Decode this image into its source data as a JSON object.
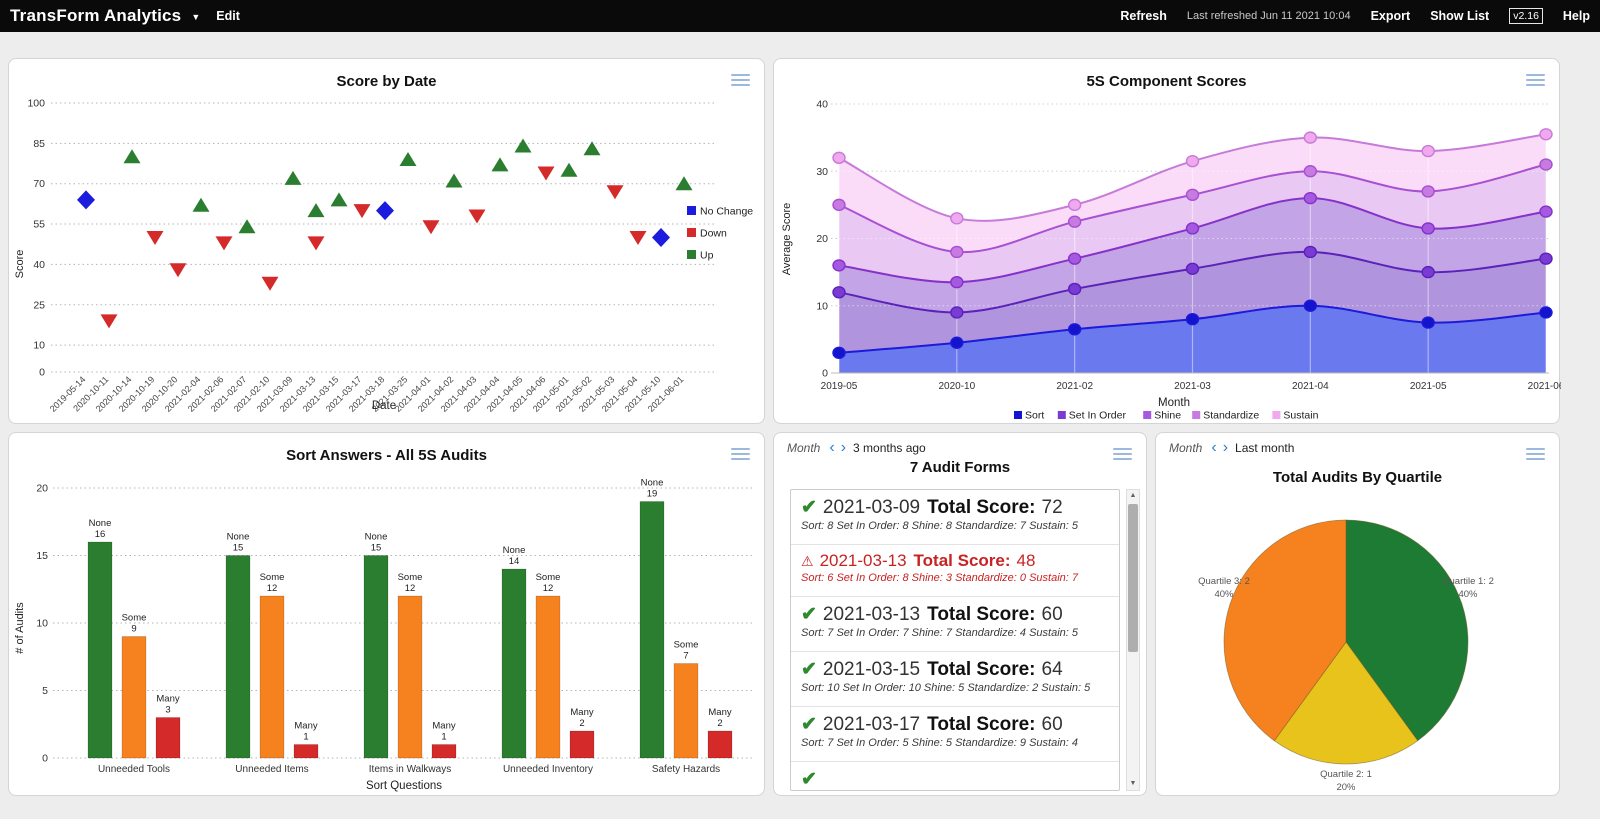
{
  "topbar": {
    "title": "TransForm Analytics",
    "edit_label": "Edit",
    "refresh_label": "Refresh",
    "last_refreshed": "Last refreshed Jun 11 2021 10:04",
    "export_label": "Export",
    "show_list_label": "Show List",
    "version": "v2.16",
    "help_label": "Help"
  },
  "audit_panel": {
    "nav_label": "Month",
    "nav_period": "3 months ago",
    "title": "7 Audit Forms",
    "total_label": "Total Score:",
    "items": [
      {
        "icon": "check",
        "date": "2021-03-09",
        "score": "72",
        "detail": "Sort: 8 Set In Order: 8 Shine: 8 Standardize: 7 Sustain: 5"
      },
      {
        "icon": "warning",
        "date": "2021-03-13",
        "score": "48",
        "detail": "Sort: 6 Set In Order: 8 Shine: 3 Standardize: 0 Sustain: 7"
      },
      {
        "icon": "check",
        "date": "2021-03-13",
        "score": "60",
        "detail": "Sort: 7 Set In Order: 7 Shine: 7 Standardize: 4 Sustain: 5"
      },
      {
        "icon": "check",
        "date": "2021-03-15",
        "score": "64",
        "detail": "Sort: 10 Set In Order: 10 Shine: 5 Standardize: 2 Sustain: 5"
      },
      {
        "icon": "check",
        "date": "2021-03-17",
        "score": "60",
        "detail": "Sort: 7 Set In Order: 5 Shine: 5 Standardize: 9 Sustain: 4"
      },
      {
        "icon": "check",
        "date": "",
        "score": "",
        "detail": ""
      }
    ]
  },
  "pie_panel": {
    "nav_label": "Month",
    "nav_period": "Last month"
  },
  "chart_data": [
    {
      "id": "score_by_date",
      "type": "scatter",
      "title": "Score by Date",
      "xlabel": "Date",
      "ylabel": "Score",
      "ylim": [
        0,
        100
      ],
      "yticks": [
        0,
        10,
        25,
        40,
        55,
        70,
        85,
        100
      ],
      "grid": "dotted horizontal",
      "legend_position": "right",
      "legend": [
        {
          "key": "no_change",
          "label": "No Change",
          "color": "#1c1cdf",
          "marker": "diamond"
        },
        {
          "key": "down",
          "label": "Down",
          "color": "#d42a2a",
          "marker": "triangle-down"
        },
        {
          "key": "up",
          "label": "Up",
          "color": "#2b7e2f",
          "marker": "triangle-up"
        }
      ],
      "categories": [
        "2019-05-14",
        "2020-10-11",
        "2020-10-14",
        "2020-10-19",
        "2020-10-20",
        "2021-02-04",
        "2021-02-06",
        "2021-02-07",
        "2021-02-10",
        "2021-03-09",
        "2021-03-13",
        "2021-03-15",
        "2021-03-17",
        "2021-03-18",
        "2021-03-25",
        "2021-04-01",
        "2021-04-02",
        "2021-04-03",
        "2021-04-04",
        "2021-04-05",
        "2021-04-06",
        "2021-05-01",
        "2021-05-02",
        "2021-05-03",
        "2021-05-04",
        "2021-05-10",
        "2021-06-01"
      ],
      "points": [
        {
          "date": "2019-05-14",
          "score": 64,
          "change": "no_change"
        },
        {
          "date": "2020-10-11",
          "score": 19,
          "change": "down"
        },
        {
          "date": "2020-10-14",
          "score": 80,
          "change": "up"
        },
        {
          "date": "2020-10-19",
          "score": 50,
          "change": "down"
        },
        {
          "date": "2020-10-20",
          "score": 38,
          "change": "down"
        },
        {
          "date": "2021-02-04",
          "score": 62,
          "change": "up"
        },
        {
          "date": "2021-02-06",
          "score": 48,
          "change": "down"
        },
        {
          "date": "2021-02-07",
          "score": 54,
          "change": "up"
        },
        {
          "date": "2021-02-10",
          "score": 33,
          "change": "down"
        },
        {
          "date": "2021-03-09",
          "score": 72,
          "change": "up"
        },
        {
          "date": "2021-03-13",
          "score": 48,
          "change": "down"
        },
        {
          "date": "2021-03-13",
          "score": 60,
          "change": "up"
        },
        {
          "date": "2021-03-15",
          "score": 64,
          "change": "up"
        },
        {
          "date": "2021-03-17",
          "score": 60,
          "change": "down"
        },
        {
          "date": "2021-03-18",
          "score": 60,
          "change": "no_change"
        },
        {
          "date": "2021-03-25",
          "score": 79,
          "change": "up"
        },
        {
          "date": "2021-04-01",
          "score": 54,
          "change": "down"
        },
        {
          "date": "2021-04-02",
          "score": 71,
          "change": "up"
        },
        {
          "date": "2021-04-03",
          "score": 58,
          "change": "down"
        },
        {
          "date": "2021-04-04",
          "score": 77,
          "change": "up"
        },
        {
          "date": "2021-04-05",
          "score": 84,
          "change": "up"
        },
        {
          "date": "2021-04-06",
          "score": 74,
          "change": "down"
        },
        {
          "date": "2021-05-01",
          "score": 75,
          "change": "up"
        },
        {
          "date": "2021-05-02",
          "score": 83,
          "change": "up"
        },
        {
          "date": "2021-05-03",
          "score": 67,
          "change": "down"
        },
        {
          "date": "2021-05-04",
          "score": 50,
          "change": "down"
        },
        {
          "date": "2021-05-10",
          "score": 50,
          "change": "no_change"
        },
        {
          "date": "2021-06-01",
          "score": 70,
          "change": "up"
        }
      ]
    },
    {
      "id": "component_scores",
      "type": "area",
      "title": "5S Component Scores",
      "xlabel": "Month",
      "ylabel": "Average Score",
      "ylim": [
        0,
        40
      ],
      "yticks": [
        0,
        10,
        20,
        30,
        40
      ],
      "stacked": true,
      "note": "values are cumulative stack heights as plotted",
      "legend_position": "bottom",
      "categories": [
        "2019-05",
        "2020-10",
        "2021-02",
        "2021-03",
        "2021-04",
        "2021-05",
        "2021-06"
      ],
      "series": [
        {
          "name": "Sort",
          "line": "#1b1bd9",
          "fill": "#6b79ee",
          "dot": "#1414cf",
          "cumulative": [
            3,
            4.5,
            6.5,
            8,
            10,
            7.5,
            9
          ]
        },
        {
          "name": "Set In Order",
          "line": "#5a22b8",
          "fill": "#b094dd",
          "dot": "#7a3bd4",
          "cumulative": [
            12,
            9,
            12.5,
            15.5,
            18,
            15,
            17
          ]
        },
        {
          "name": "Shine",
          "line": "#8632c9",
          "fill": "#c3a4e6",
          "dot": "#a558e0",
          "cumulative": [
            16,
            13.5,
            17,
            21.5,
            26,
            21.5,
            24
          ]
        },
        {
          "name": "Standardize",
          "line": "#a94fd2",
          "fill": "#e9c9f4",
          "dot": "#c77be0",
          "cumulative": [
            25,
            18,
            22.5,
            26.5,
            30,
            27,
            31
          ]
        },
        {
          "name": "Sustain",
          "line": "#c77bd8",
          "fill": "#fadcf8",
          "dot": "#f0a8ee",
          "cumulative": [
            32,
            23,
            25,
            31.5,
            35,
            33,
            35.5
          ]
        }
      ]
    },
    {
      "id": "sort_answers",
      "type": "bar",
      "title": "Sort Answers - All 5S Audits",
      "xlabel": "Sort Questions",
      "ylabel": "# of Audits",
      "ylim": [
        0,
        20
      ],
      "yticks": [
        0,
        5,
        10,
        15,
        20
      ],
      "bar_labels": true,
      "categories": [
        "Unneeded Tools",
        "Unneeded Items",
        "Items in Walkways",
        "Unneeded Inventory",
        "Safety Hazards"
      ],
      "series": [
        {
          "name": "None",
          "color": "#2b7e2f",
          "values": [
            16,
            15,
            15,
            14,
            19
          ]
        },
        {
          "name": "Some",
          "color": "#f6821f",
          "values": [
            9,
            12,
            12,
            12,
            7
          ]
        },
        {
          "name": "Many",
          "color": "#d42a2a",
          "values": [
            3,
            1,
            1,
            2,
            2
          ]
        }
      ]
    },
    {
      "id": "total_audits_by_quartile",
      "type": "pie",
      "title": "Total Audits By Quartile",
      "start_angle": "top",
      "direction": "clockwise",
      "slices": [
        {
          "label": "Quartile 1",
          "count": 2,
          "pct": 40,
          "color": "#1e7b33",
          "label_side": "right"
        },
        {
          "label": "Quartile 2",
          "count": 1,
          "pct": 20,
          "color": "#e7c31b",
          "label_side": "bottom"
        },
        {
          "label": "Quartile 3",
          "count": 2,
          "pct": 40,
          "color": "#f5821f",
          "label_side": "left"
        }
      ]
    }
  ]
}
